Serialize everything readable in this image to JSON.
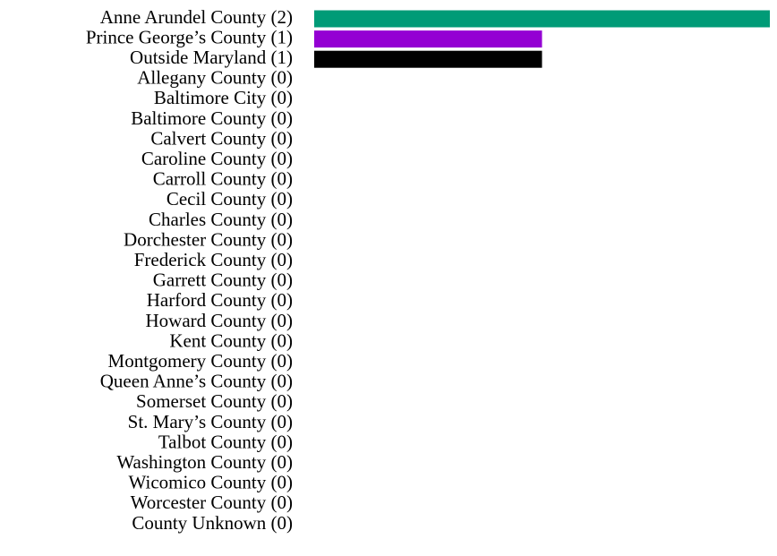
{
  "chart_data": {
    "type": "barh",
    "categories": [
      "Anne Arundel County (2)",
      "Prince George’s County (1)",
      "Outside Maryland (1)",
      "Allegany County (0)",
      "Baltimore City (0)",
      "Baltimore County (0)",
      "Calvert County (0)",
      "Caroline County (0)",
      "Carroll County (0)",
      "Cecil County (0)",
      "Charles County (0)",
      "Dorchester County (0)",
      "Frederick County (0)",
      "Garrett County (0)",
      "Harford County (0)",
      "Howard County (0)",
      "Kent County (0)",
      "Montgomery County (0)",
      "Queen Anne’s County (0)",
      "Somerset County (0)",
      "St. Mary’s County (0)",
      "Talbot County (0)",
      "Washington County (0)",
      "Wicomico County (0)",
      "Worcester County (0)",
      "County Unknown (0)"
    ],
    "values": [
      2,
      1,
      1,
      0,
      0,
      0,
      0,
      0,
      0,
      0,
      0,
      0,
      0,
      0,
      0,
      0,
      0,
      0,
      0,
      0,
      0,
      0,
      0,
      0,
      0,
      0
    ],
    "colors": [
      "#009b77",
      "#9400d3",
      "#000000",
      null,
      null,
      null,
      null,
      null,
      null,
      null,
      null,
      null,
      null,
      null,
      null,
      null,
      null,
      null,
      null,
      null,
      null,
      null,
      null,
      null,
      null,
      null
    ],
    "xlim": [
      0,
      2
    ]
  }
}
